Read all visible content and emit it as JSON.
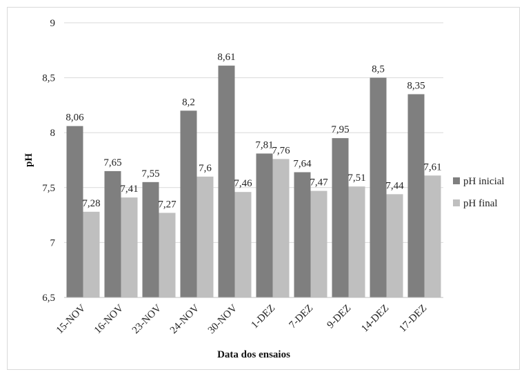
{
  "chart_data": {
    "type": "bar",
    "xlabel": "Data dos ensaios",
    "ylabel": "pH",
    "ylim": [
      6.5,
      9
    ],
    "yticks": [
      6.5,
      7,
      7.5,
      8,
      8.5,
      9
    ],
    "ytick_labels": [
      "6,5",
      "7",
      "7,5",
      "8",
      "8,5",
      "9"
    ],
    "grid": true,
    "legend_position": "right",
    "categories": [
      "15-NOV",
      "16-NOV",
      "23-NOV",
      "24-NOV",
      "30-NOV",
      "1-DEZ",
      "7-DEZ",
      "9-DEZ",
      "14-DEZ",
      "17-DEZ"
    ],
    "series": [
      {
        "name": "pH inicial",
        "color": "#7f7f7f",
        "values": [
          8.06,
          7.65,
          7.55,
          8.2,
          8.61,
          7.81,
          7.64,
          7.95,
          8.5,
          8.35
        ],
        "labels": [
          "8,06",
          "7,65",
          "7,55",
          "8,2",
          "8,61",
          "7,81",
          "7,64",
          "7,95",
          "8,5",
          "8,35"
        ]
      },
      {
        "name": "pH final",
        "color": "#bfbfbf",
        "values": [
          7.28,
          7.41,
          7.27,
          7.6,
          7.46,
          7.76,
          7.47,
          7.51,
          7.44,
          7.61
        ],
        "labels": [
          "7,28",
          "7,41",
          "7,27",
          "7,6",
          "7,46",
          "7,76",
          "7,47",
          "7,51",
          "7,44",
          "7,61"
        ]
      }
    ]
  }
}
